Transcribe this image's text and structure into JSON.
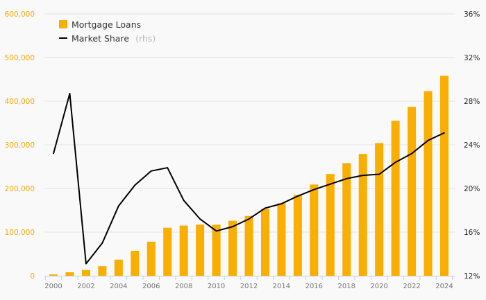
{
  "chart_data": {
    "type": "bar",
    "title": "",
    "xlabel": "",
    "ylabel": "",
    "categories": [
      "2000",
      "2001",
      "2002",
      "2003",
      "2004",
      "2005",
      "2006",
      "2007",
      "2008",
      "2009",
      "2010",
      "2011",
      "2012",
      "2013",
      "2014",
      "2015",
      "2016",
      "2017",
      "2018",
      "2019",
      "2020",
      "2021",
      "2022",
      "2023",
      "2024"
    ],
    "x_tick_labels": [
      "2000",
      "2002",
      "2004",
      "2006",
      "2008",
      "2010",
      "2012",
      "2014",
      "2016",
      "2018",
      "2020",
      "2022",
      "2024"
    ],
    "series": [
      {
        "name": "Mortgage Loans",
        "type": "bar",
        "axis": "left",
        "color": "#f9ae00",
        "values": [
          3000,
          8000,
          13000,
          22000,
          37000,
          57000,
          78000,
          110000,
          115000,
          117000,
          117000,
          126000,
          137000,
          153000,
          166000,
          185000,
          209000,
          233000,
          258000,
          279000,
          304000,
          355000,
          387000,
          423000,
          458000
        ]
      },
      {
        "name": "Market Share",
        "name_suffix": "(rhs)",
        "type": "line",
        "axis": "right",
        "color": "#000000",
        "values": [
          23.2,
          28.7,
          13.1,
          15.0,
          18.4,
          20.3,
          21.6,
          21.9,
          18.9,
          17.2,
          16.1,
          16.5,
          17.2,
          18.2,
          18.6,
          19.3,
          19.9,
          20.4,
          20.9,
          21.2,
          21.3,
          22.4,
          23.2,
          24.4,
          25.1
        ]
      }
    ],
    "ylim": [
      0,
      600000
    ],
    "y_tick_labels": [
      "0",
      "100,000",
      "200,000",
      "300,000",
      "400,000",
      "500,000",
      "600,000"
    ],
    "y_ticks": [
      0,
      100000,
      200000,
      300000,
      400000,
      500000,
      600000
    ],
    "y2lim": [
      12,
      36
    ],
    "y2_tick_labels": [
      "12%",
      "16%",
      "20%",
      "24%",
      "28%",
      "32%",
      "36%"
    ],
    "y2_ticks": [
      12,
      16,
      20,
      24,
      28,
      32,
      36
    ],
    "grid": true,
    "legend_position": "top-left",
    "colors": {
      "left_axis": "#f5a800",
      "grid": "#e2e2e2",
      "x_axis": "#c5cfe6"
    }
  }
}
